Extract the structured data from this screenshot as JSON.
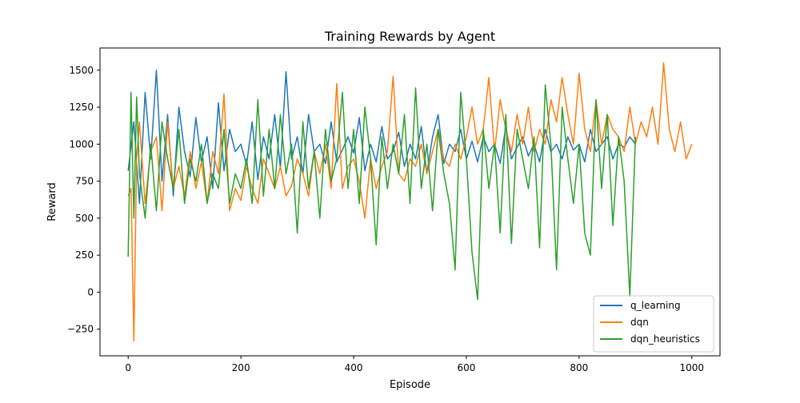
{
  "chart_data": {
    "type": "line",
    "title": "Training Rewards by Agent",
    "xlabel": "Episode",
    "ylabel": "Reward",
    "xlim": [
      -50,
      1050
    ],
    "ylim": [
      -430,
      1650
    ],
    "xticks": [
      0,
      200,
      400,
      600,
      800,
      1000
    ],
    "yticks": [
      -250,
      0,
      250,
      500,
      750,
      1000,
      1250,
      1500
    ],
    "grid": false,
    "legend_position": "lower-right",
    "series": [
      {
        "name": "q_learning",
        "color": "#1f77b4",
        "x": [
          0,
          10,
          20,
          30,
          40,
          50,
          60,
          70,
          80,
          90,
          100,
          110,
          120,
          130,
          140,
          150,
          160,
          170,
          180,
          190,
          200,
          210,
          220,
          230,
          240,
          250,
          260,
          270,
          280,
          290,
          300,
          310,
          320,
          330,
          340,
          350,
          360,
          370,
          380,
          390,
          400,
          410,
          420,
          430,
          440,
          450,
          460,
          470,
          480,
          490,
          500,
          510,
          520,
          530,
          540,
          550,
          560,
          570,
          580,
          590,
          600,
          610,
          620,
          630,
          640,
          650,
          660,
          670,
          680,
          690,
          700,
          710,
          720,
          730,
          740,
          750,
          760,
          770,
          780,
          790,
          800,
          810,
          820,
          830,
          840,
          850,
          860,
          870,
          880,
          890,
          900
        ],
        "y": [
          820,
          1150,
          600,
          1350,
          900,
          1500,
          750,
          1200,
          650,
          1250,
          950,
          780,
          1180,
          880,
          1050,
          700,
          1280,
          820,
          1100,
          950,
          1000,
          860,
          1150,
          760,
          1050,
          900,
          1200,
          840,
          1490,
          900,
          1050,
          800,
          1200,
          950,
          1000,
          870,
          1150,
          880,
          960,
          1050,
          940,
          1180,
          820,
          1000,
          880,
          1120,
          900,
          950,
          1080,
          850,
          1000,
          900,
          1120,
          800,
          1050,
          1200,
          870,
          1000,
          950,
          1100,
          900,
          1020,
          880,
          1050,
          950,
          1000,
          870,
          1120,
          900,
          980,
          1050,
          920,
          1000,
          880,
          1100,
          950,
          1000,
          900,
          1050,
          960,
          1000,
          880,
          1100,
          950,
          1000,
          1050,
          900,
          1000,
          980,
          1050,
          1000
        ]
      },
      {
        "name": "dqn",
        "color": "#ff7f0e",
        "x": [
          0,
          5,
          10,
          15,
          20,
          30,
          40,
          50,
          60,
          70,
          80,
          90,
          100,
          110,
          120,
          130,
          140,
          150,
          160,
          170,
          180,
          190,
          200,
          210,
          220,
          230,
          240,
          250,
          260,
          270,
          280,
          290,
          300,
          310,
          320,
          330,
          340,
          350,
          360,
          370,
          380,
          390,
          400,
          410,
          420,
          430,
          440,
          450,
          460,
          470,
          480,
          490,
          500,
          510,
          520,
          530,
          540,
          550,
          560,
          570,
          580,
          590,
          600,
          610,
          620,
          630,
          640,
          650,
          660,
          670,
          680,
          690,
          700,
          710,
          720,
          730,
          740,
          750,
          760,
          770,
          780,
          790,
          800,
          810,
          820,
          830,
          840,
          850,
          860,
          870,
          880,
          890,
          900,
          910,
          920,
          930,
          940,
          950,
          960,
          970,
          980,
          990,
          1000
        ],
        "y": [
          650,
          700,
          -330,
          900,
          1150,
          600,
          950,
          1050,
          550,
          1150,
          700,
          850,
          650,
          950,
          700,
          880,
          600,
          950,
          800,
          1340,
          550,
          700,
          620,
          850,
          700,
          600,
          900,
          800,
          700,
          850,
          650,
          720,
          900,
          800,
          650,
          950,
          800,
          1000,
          700,
          1410,
          700,
          850,
          900,
          750,
          500,
          900,
          700,
          850,
          950,
          1460,
          800,
          750,
          900,
          850,
          1000,
          800,
          950,
          1100,
          900,
          850,
          1000,
          900,
          1050,
          1250,
          1000,
          1100,
          1450,
          950,
          1300,
          1100,
          950,
          1200,
          1000,
          1250,
          950,
          1100,
          1000,
          1300,
          1150,
          1450,
          1200,
          1000,
          1480,
          1100,
          950,
          1300,
          1000,
          1200,
          1100,
          1050,
          950,
          1250,
          1000,
          1150,
          1050,
          1250,
          1000,
          1550,
          1100,
          950,
          1150,
          900,
          1000
        ]
      },
      {
        "name": "dqn_heuristics",
        "color": "#2ca02c",
        "x": [
          0,
          5,
          10,
          15,
          20,
          30,
          40,
          50,
          60,
          70,
          80,
          90,
          100,
          110,
          120,
          130,
          140,
          150,
          160,
          170,
          180,
          190,
          200,
          210,
          220,
          230,
          240,
          250,
          260,
          270,
          280,
          290,
          300,
          310,
          320,
          330,
          340,
          350,
          360,
          370,
          380,
          390,
          400,
          410,
          420,
          430,
          440,
          450,
          460,
          470,
          480,
          490,
          500,
          510,
          520,
          530,
          540,
          550,
          560,
          570,
          580,
          590,
          600,
          610,
          620,
          630,
          640,
          650,
          660,
          670,
          680,
          690,
          700,
          710,
          720,
          730,
          740,
          750,
          760,
          770,
          780,
          790,
          800,
          810,
          820,
          830,
          840,
          850,
          860,
          870,
          880,
          890,
          900
        ],
        "y": [
          240,
          1350,
          500,
          1320,
          800,
          500,
          1000,
          550,
          1150,
          900,
          700,
          1100,
          600,
          900,
          750,
          1000,
          600,
          800,
          700,
          1100,
          600,
          800,
          700,
          900,
          600,
          1300,
          650,
          1100,
          700,
          1200,
          800,
          1000,
          400,
          1150,
          700,
          950,
          500,
          1100,
          750,
          900,
          1350,
          700,
          1100,
          600,
          1250,
          900,
          320,
          1050,
          700,
          1000,
          800,
          1200,
          600,
          1380,
          700,
          1000,
          550,
          1100,
          800,
          600,
          150,
          1350,
          900,
          270,
          -50,
          1100,
          700,
          1000,
          400,
          1200,
          330,
          1100,
          900,
          700,
          1050,
          300,
          1400,
          1000,
          150,
          1250,
          900,
          600,
          1000,
          400,
          250,
          1300,
          700,
          1200,
          450,
          1050,
          750,
          -30,
          1050
        ]
      }
    ]
  }
}
